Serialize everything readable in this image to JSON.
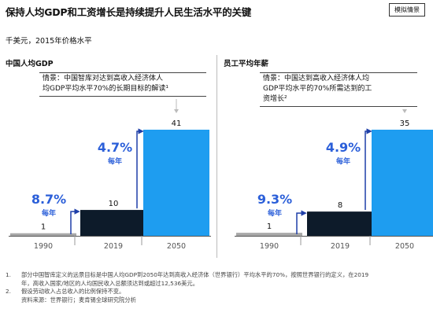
{
  "header": {
    "title": "保持人均GDP和工资增长是持续提升人民生活水平的关键",
    "badge": "模拟情景"
  },
  "unit_label": "千美元，2015年价格水平",
  "panels": [
    {
      "title": "中国人均GDP",
      "scenario_lines": [
        "情景：中国智库对达到高收入经济体人",
        "均GDP平均水平70%的长期目标的解读¹"
      ]
    },
    {
      "title": "员工平均年薪",
      "scenario_lines": [
        "情景：中国达到高收入经济体人均",
        "GDP平均水平的70%所需达到的工",
        "资增长²"
      ]
    }
  ],
  "colors": {
    "bar_1990": "#a8a8a8",
    "bar_2019": "#0d1b2a",
    "bar_2050": "#1e9df0",
    "growth_text": "#2b5fd9",
    "arrow": "#1f3fa8",
    "connector": "#bbbbbb"
  },
  "chart_data": [
    {
      "type": "bar",
      "title": "中国人均GDP",
      "categories": [
        "1990",
        "2019",
        "2050"
      ],
      "values": [
        1,
        10,
        41
      ],
      "data_labels": [
        "1",
        "10",
        "41"
      ],
      "growth": [
        {
          "rate": "8.7%",
          "unit": "每年",
          "from": "1990",
          "to": "2019"
        },
        {
          "rate": "4.7%",
          "unit": "每年",
          "from": "2019",
          "to": "2050"
        }
      ],
      "ylim": [
        0,
        41
      ]
    },
    {
      "type": "bar",
      "title": "员工平均年薪",
      "categories": [
        "1990",
        "2019",
        "2050"
      ],
      "values": [
        1,
        8,
        35
      ],
      "data_labels": [
        "1",
        "8",
        "35"
      ],
      "growth": [
        {
          "rate": "9.3%",
          "unit": "每年",
          "from": "1990",
          "to": "2019"
        },
        {
          "rate": "4.9%",
          "unit": "每年",
          "from": "2019",
          "to": "2050"
        }
      ],
      "ylim": [
        0,
        35
      ]
    }
  ],
  "footnotes": [
    {
      "num": "1.",
      "text": "部分中国智库定义的远景目标是中国人均GDP到2050年达到高收入经济体（世界银行）平均水平的70%，按照世界银行的定义，在2019"
    },
    {
      "num": "",
      "text": "年，高收入国家/地区的人均国民收入总额须达到或超过12,536美元。"
    },
    {
      "num": "2.",
      "text": "假设劳动收入占总收入的比例保持不变。"
    },
    {
      "num": "",
      "text": "资料来源：世界银行；麦肯锡全球研究院分析"
    }
  ]
}
